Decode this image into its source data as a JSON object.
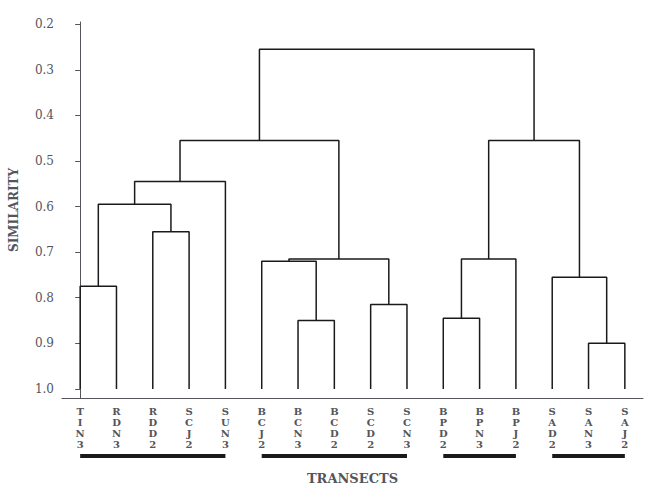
{
  "chart_data": {
    "type": "dendrogram",
    "categories": [
      "TIN3",
      "RDN3",
      "RDD2",
      "SCJ2",
      "SUN3",
      "BCJ2",
      "BCN3",
      "BCD2",
      "SCD2",
      "SCN3",
      "BPD2",
      "BPN3",
      "BPJ2",
      "SAD2",
      "SAN3",
      "SAJ2"
    ],
    "leaf_similarity": 1.0,
    "merges": [
      {
        "left": [
          "TIN3"
        ],
        "right": [
          "RDN3"
        ],
        "height": 0.775
      },
      {
        "left": [
          "RDD2"
        ],
        "right": [
          "SCJ2"
        ],
        "height": 0.655
      },
      {
        "left": [
          "TIN3",
          "RDN3"
        ],
        "right": [
          "RDD2",
          "SCJ2"
        ],
        "height": 0.595
      },
      {
        "left": [
          "TIN3",
          "RDN3",
          "RDD2",
          "SCJ2"
        ],
        "right": [
          "SUN3"
        ],
        "height": 0.545
      },
      {
        "left": [
          "BCN3"
        ],
        "right": [
          "BCD2"
        ],
        "height": 0.85
      },
      {
        "left": [
          "BCJ2"
        ],
        "right": [
          "BCN3",
          "BCD2"
        ],
        "height": 0.72
      },
      {
        "left": [
          "SCD2"
        ],
        "right": [
          "SCN3"
        ],
        "height": 0.815
      },
      {
        "left": [
          "BCJ2",
          "BCN3",
          "BCD2"
        ],
        "right": [
          "SCD2",
          "SCN3"
        ],
        "height": 0.715
      },
      {
        "left": [
          "TIN3",
          "RDN3",
          "RDD2",
          "SCJ2",
          "SUN3"
        ],
        "right": [
          "BCJ2",
          "BCN3",
          "BCD2",
          "SCD2",
          "SCN3"
        ],
        "height": 0.455
      },
      {
        "left": [
          "BPD2"
        ],
        "right": [
          "BPN3"
        ],
        "height": 0.845
      },
      {
        "left": [
          "BPD2",
          "BPN3"
        ],
        "right": [
          "BPJ2"
        ],
        "height": 0.715
      },
      {
        "left": [
          "SAN3"
        ],
        "right": [
          "SAJ2"
        ],
        "height": 0.9
      },
      {
        "left": [
          "SAD2"
        ],
        "right": [
          "SAN3",
          "SAJ2"
        ],
        "height": 0.755
      },
      {
        "left": [
          "BPD2",
          "BPN3",
          "BPJ2"
        ],
        "right": [
          "SAD2",
          "SAN3",
          "SAJ2"
        ],
        "height": 0.455
      },
      {
        "left": [
          "TIN3",
          "RDN3",
          "RDD2",
          "SCJ2",
          "SUN3",
          "BCJ2",
          "BCN3",
          "BCD2",
          "SCD2",
          "SCN3"
        ],
        "right": [
          "BPD2",
          "BPN3",
          "BPJ2",
          "SAD2",
          "SAN3",
          "SAJ2"
        ],
        "height": 0.255
      }
    ],
    "groups": [
      [
        "TIN3",
        "RDN3",
        "RDD2",
        "SCJ2",
        "SUN3"
      ],
      [
        "BCJ2",
        "BCN3",
        "BCD2",
        "SCD2",
        "SCN3"
      ],
      [
        "BPD2",
        "BPN3",
        "BPJ2"
      ],
      [
        "SAD2",
        "SAN3",
        "SAJ2"
      ]
    ],
    "color": "#1a1a1a",
    "xlabel": "TRANSECTS",
    "ylabel": "SIMILARITY",
    "ylim": [
      1.02,
      0.195
    ],
    "yticks": [
      0.2,
      0.3,
      0.4,
      0.5,
      0.6,
      0.7,
      0.8,
      0.9,
      {
        "value": 1,
        "label": "1.0"
      }
    ],
    "grid": false
  }
}
